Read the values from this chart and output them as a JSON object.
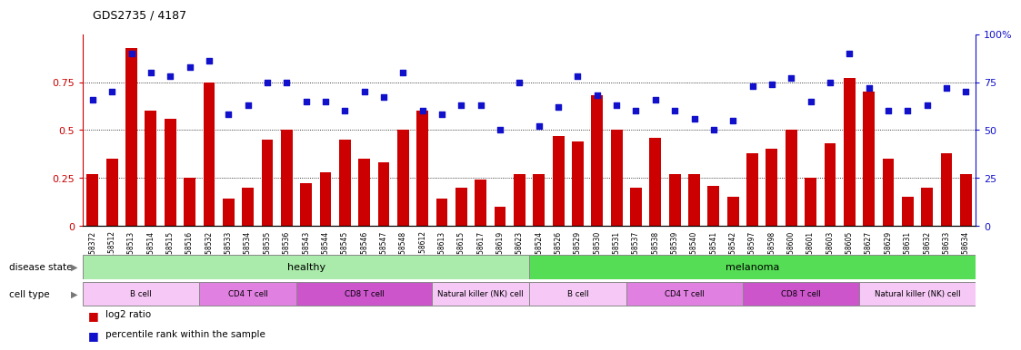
{
  "title": "GDS2735 / 4187",
  "samples": [
    "GSM158372",
    "GSM158512",
    "GSM158513",
    "GSM158514",
    "GSM158515",
    "GSM158516",
    "GSM158532",
    "GSM158533",
    "GSM158534",
    "GSM158535",
    "GSM158536",
    "GSM158543",
    "GSM158544",
    "GSM158545",
    "GSM158546",
    "GSM158547",
    "GSM158548",
    "GSM158612",
    "GSM158613",
    "GSM158615",
    "GSM158617",
    "GSM158619",
    "GSM158623",
    "GSM158524",
    "GSM158526",
    "GSM158529",
    "GSM158530",
    "GSM158531",
    "GSM158537",
    "GSM158538",
    "GSM158539",
    "GSM158540",
    "GSM158541",
    "GSM158542",
    "GSM158597",
    "GSM158598",
    "GSM158600",
    "GSM158601",
    "GSM158603",
    "GSM158605",
    "GSM158627",
    "GSM158629",
    "GSM158631",
    "GSM158632",
    "GSM158633",
    "GSM158634"
  ],
  "log2_ratio": [
    0.27,
    0.35,
    0.93,
    0.6,
    0.56,
    0.25,
    0.75,
    0.14,
    0.2,
    0.45,
    0.5,
    0.22,
    0.28,
    0.45,
    0.35,
    0.33,
    0.5,
    0.6,
    0.14,
    0.2,
    0.24,
    0.1,
    0.27,
    0.27,
    0.47,
    0.44,
    0.68,
    0.5,
    0.2,
    0.46,
    0.27,
    0.27,
    0.21,
    0.15,
    0.38,
    0.4,
    0.5,
    0.25,
    0.43,
    0.77,
    0.7,
    0.35,
    0.15,
    0.2,
    0.38,
    0.27
  ],
  "percentile": [
    0.66,
    0.7,
    0.9,
    0.8,
    0.78,
    0.83,
    0.86,
    0.58,
    0.63,
    0.75,
    0.75,
    0.65,
    0.65,
    0.6,
    0.7,
    0.67,
    0.8,
    0.6,
    0.58,
    0.63,
    0.63,
    0.5,
    0.75,
    0.52,
    0.62,
    0.78,
    0.68,
    0.63,
    0.6,
    0.66,
    0.6,
    0.56,
    0.5,
    0.55,
    0.73,
    0.74,
    0.77,
    0.65,
    0.75,
    0.9,
    0.72,
    0.6,
    0.6,
    0.63,
    0.72,
    0.7
  ],
  "disease_groups": [
    {
      "label": "healthy",
      "start": 0,
      "end": 23,
      "color": "#aaeaaa"
    },
    {
      "label": "melanoma",
      "start": 23,
      "end": 46,
      "color": "#55dd55"
    }
  ],
  "cell_type_groups": [
    {
      "label": "B cell",
      "start": 0,
      "end": 6,
      "color": "#f5c8f5"
    },
    {
      "label": "CD4 T cell",
      "start": 6,
      "end": 11,
      "color": "#e080e0"
    },
    {
      "label": "CD8 T cell",
      "start": 11,
      "end": 18,
      "color": "#cc55cc"
    },
    {
      "label": "Natural killer (NK) cell",
      "start": 18,
      "end": 23,
      "color": "#f5c8f5"
    },
    {
      "label": "B cell",
      "start": 23,
      "end": 28,
      "color": "#f5c8f5"
    },
    {
      "label": "CD4 T cell",
      "start": 28,
      "end": 34,
      "color": "#e080e0"
    },
    {
      "label": "CD8 T cell",
      "start": 34,
      "end": 40,
      "color": "#cc55cc"
    },
    {
      "label": "Natural killer (NK) cell",
      "start": 40,
      "end": 46,
      "color": "#f5c8f5"
    }
  ],
  "bar_color": "#cc0000",
  "dot_color": "#1111cc",
  "bar_width": 0.6
}
